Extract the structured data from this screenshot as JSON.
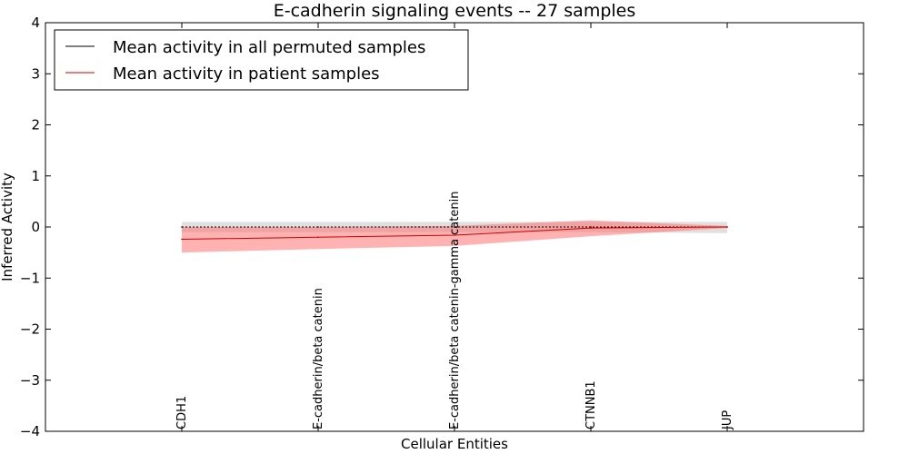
{
  "chart_data": {
    "type": "line",
    "title": "E-cadherin signaling events -- 27 samples",
    "xlabel": "Cellular Entities",
    "ylabel": "Inferred Activity",
    "ylim": [
      -4,
      4
    ],
    "yticks": [
      -4,
      -3,
      -2,
      -1,
      0,
      1,
      2,
      3,
      4
    ],
    "ytick_labels": [
      "−4",
      "−3",
      "−2",
      "−1",
      "0",
      "1",
      "2",
      "3",
      "4"
    ],
    "categories": [
      "CDH1",
      "E-cadherin/beta catenin",
      "E-cadherin/beta catenin-gamma catenin",
      "CTNNB1",
      "JUP"
    ],
    "grid": false,
    "legend_position": "top-left",
    "series": [
      {
        "name": "Mean activity in all permuted samples",
        "color": "#000000",
        "values": [
          0.0,
          0.0,
          0.0,
          0.0,
          0.0
        ],
        "band_low": [
          -0.1,
          -0.1,
          -0.1,
          -0.1,
          -0.12
        ],
        "band_high": [
          0.1,
          0.1,
          0.1,
          0.1,
          0.1
        ],
        "band_color": "#bbbbbb"
      },
      {
        "name": "Mean activity in patient samples",
        "color": "#cc0000",
        "values": [
          -0.24,
          -0.2,
          -0.16,
          -0.02,
          0.0
        ],
        "band_low": [
          -0.5,
          -0.43,
          -0.37,
          -0.18,
          -0.02
        ],
        "band_high": [
          0.0,
          0.0,
          0.02,
          0.13,
          0.02
        ],
        "band_color": "#ff6666"
      }
    ]
  }
}
